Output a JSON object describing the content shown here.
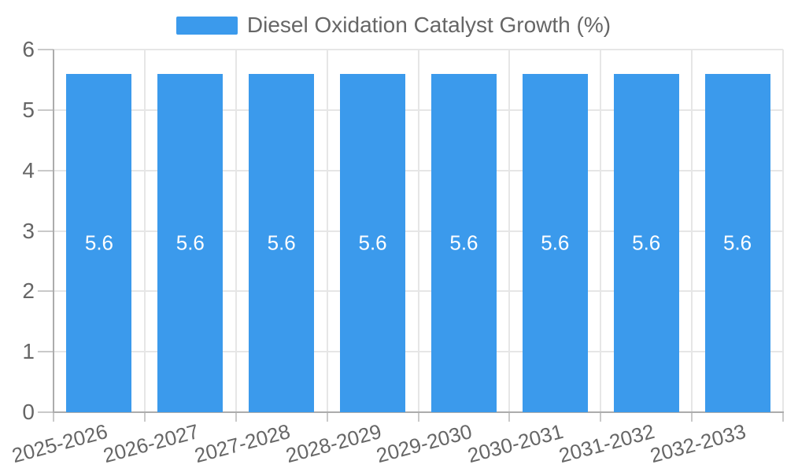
{
  "chart_data": {
    "type": "bar",
    "title": "Diesel Oxidation Catalyst Growth (%)",
    "legend_position": "top",
    "categories": [
      "2025-2026",
      "2026-2027",
      "2027-2028",
      "2028-2029",
      "2029-2030",
      "2030-2031",
      "2031-2032",
      "2032-2033"
    ],
    "series": [
      {
        "name": "Diesel Oxidation Catalyst Growth (%)",
        "values": [
          5.6,
          5.6,
          5.6,
          5.6,
          5.6,
          5.6,
          5.6,
          5.6
        ]
      }
    ],
    "bar_labels": [
      "5.6",
      "5.6",
      "5.6",
      "5.6",
      "5.6",
      "5.6",
      "5.6",
      "5.6"
    ],
    "xlabel": "",
    "ylabel": "",
    "ylim": [
      0,
      6
    ],
    "yticks": [
      0,
      1,
      2,
      3,
      4,
      5,
      6
    ],
    "grid": true,
    "x_label_rotation_deg": -15,
    "colors": {
      "bar": "#3B9AEC",
      "grid": "#E6E6E6",
      "axis_line": "#ACACAC",
      "tick_mark": "#C9C9C9",
      "text": "#666666",
      "value_label": "#FFFFFF"
    }
  }
}
